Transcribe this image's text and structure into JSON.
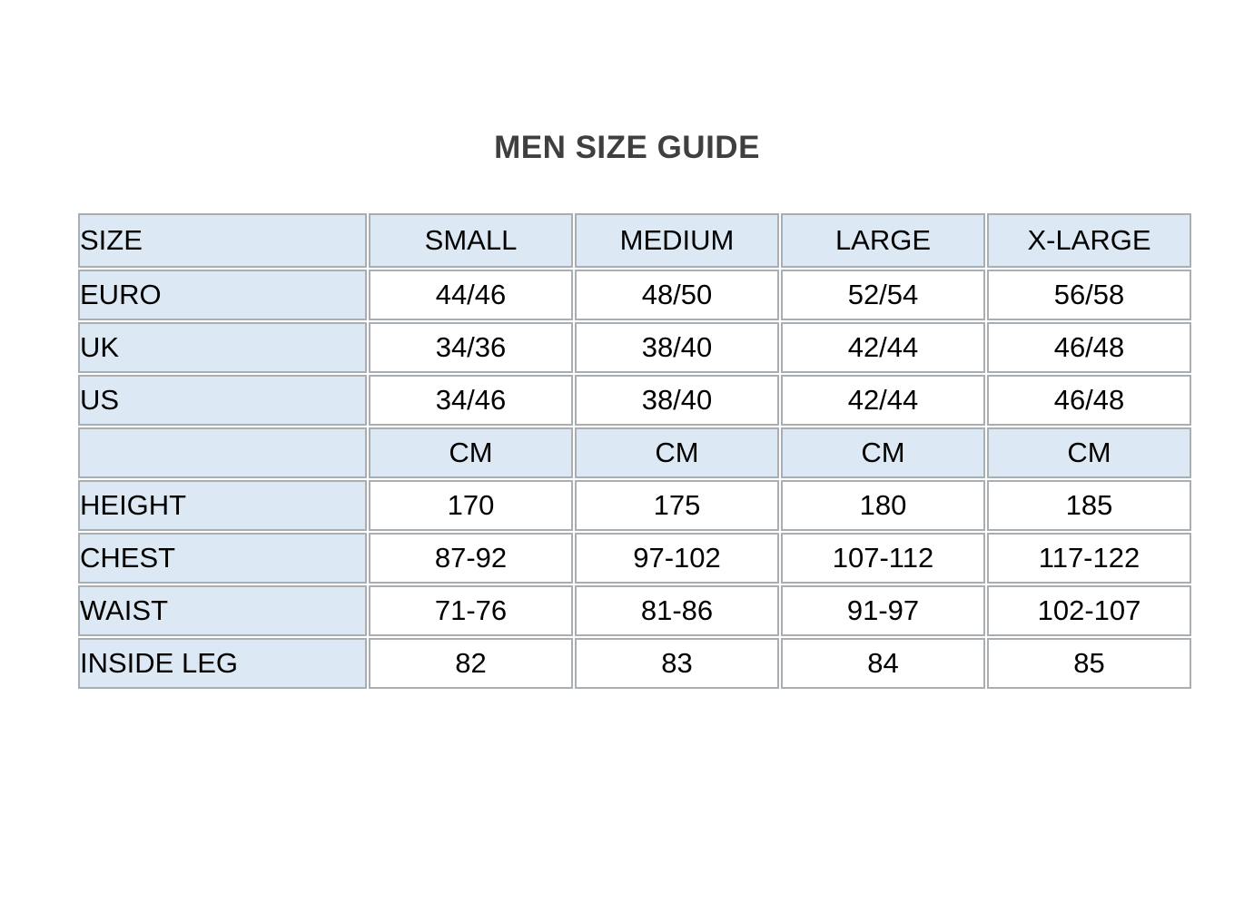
{
  "page_title": "MEN SIZE GUIDE",
  "colors": {
    "title_text": "#3f3f3f",
    "cell_text": "#000000",
    "highlight_bg": "#dce8f3",
    "border": "#a9aeb2",
    "page_bg": "#ffffff"
  },
  "table": {
    "columns": [
      "SIZE",
      "SMALL",
      "MEDIUM",
      "LARGE",
      "X-LARGE"
    ],
    "rows": [
      {
        "label": "EURO",
        "values": [
          "44/46",
          "48/50",
          "52/54",
          "56/58"
        ],
        "highlight": false
      },
      {
        "label": "UK",
        "values": [
          "34/36",
          "38/40",
          "42/44",
          "46/48"
        ],
        "highlight": false
      },
      {
        "label": "US",
        "values": [
          "34/46",
          "38/40",
          "42/44",
          "46/48"
        ],
        "highlight": false
      },
      {
        "label": "",
        "values": [
          "CM",
          "CM",
          "CM",
          "CM"
        ],
        "highlight": true
      },
      {
        "label": "HEIGHT",
        "values": [
          "170",
          "175",
          "180",
          "185"
        ],
        "highlight": false
      },
      {
        "label": "CHEST",
        "values": [
          "87-92",
          "97-102",
          "107-112",
          "117-122"
        ],
        "highlight": false
      },
      {
        "label": "WAIST",
        "values": [
          "71-76",
          "81-86",
          "91-97",
          "102-107"
        ],
        "highlight": false
      },
      {
        "label": "INSIDE LEG",
        "values": [
          "82",
          "83",
          "84",
          "85"
        ],
        "highlight": false
      }
    ]
  }
}
